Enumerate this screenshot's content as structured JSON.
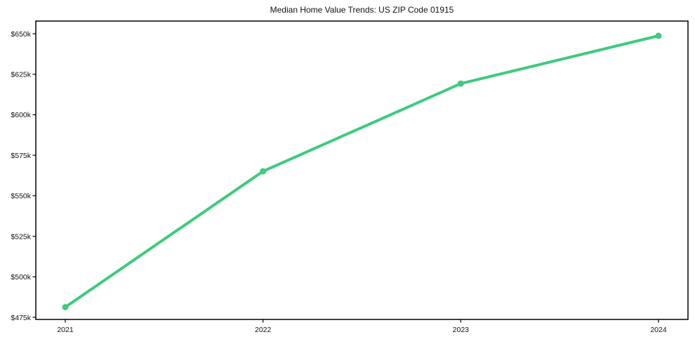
{
  "title": "Median Home Value Trends: US ZIP Code 01915",
  "chart_data": {
    "type": "line",
    "title": "Median Home Value Trends: US ZIP Code 01915",
    "xlabel": "",
    "ylabel": "",
    "x_categories": [
      "2021",
      "2022",
      "2023",
      "2024"
    ],
    "series": [
      {
        "name": "Median Home Value",
        "values_k": [
          481.3,
          565.1,
          619.2,
          648.7
        ],
        "color": "#3dcb7d"
      }
    ],
    "y_ticks_k": [
      475,
      500,
      525,
      550,
      575,
      600,
      625,
      650
    ],
    "y_tick_labels": [
      "$475k",
      "$500k",
      "$525k",
      "$550k",
      "$575k",
      "$600k",
      "$625k",
      "$650k"
    ],
    "ylim_k": [
      473.7,
      657.8
    ],
    "grid": false,
    "legend": "none",
    "marker": "circle",
    "line_width": 4,
    "marker_radius": 4.5,
    "axis_color": "#000000",
    "background": "#ffffff"
  }
}
